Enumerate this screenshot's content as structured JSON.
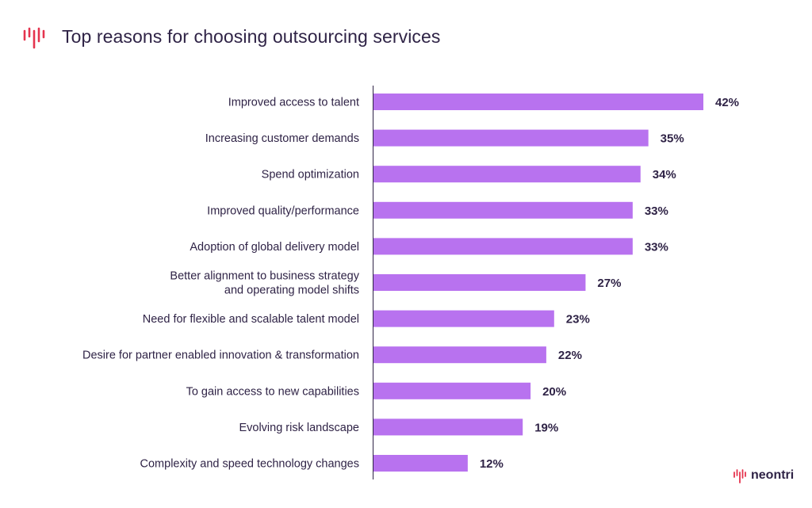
{
  "header": {
    "title": "Top reasons for choosing outsourcing services",
    "brand_icon": "neontri-waveform-icon"
  },
  "logo": {
    "text": "neontri",
    "icon": "neontri-waveform-icon"
  },
  "colors": {
    "bar": "#b872ef",
    "text": "#2f2346",
    "axis": "#2f2346",
    "brand": "#e5344e"
  },
  "chart_data": {
    "type": "bar",
    "orientation": "horizontal",
    "title": "Top reasons for choosing outsourcing services",
    "unit": "%",
    "categories": [
      [
        "Improved access to talent"
      ],
      [
        "Increasing customer demands"
      ],
      [
        "Spend optimization"
      ],
      [
        "Improved quality/performance"
      ],
      [
        "Adoption of global delivery model"
      ],
      [
        "Better alignment to business strategy",
        "and operating model shifts"
      ],
      [
        "Need for flexible and scalable talent model"
      ],
      [
        "Desire for partner enabled innovation & transformation"
      ],
      [
        "To gain access to new capabilities"
      ],
      [
        "Evolving risk landscape"
      ],
      [
        "Complexity and speed technology changes"
      ]
    ],
    "values": [
      42,
      35,
      34,
      33,
      33,
      27,
      23,
      22,
      20,
      19,
      12
    ],
    "value_labels": [
      "42%",
      "35%",
      "34%",
      "33%",
      "33%",
      "27%",
      "23%",
      "22%",
      "20%",
      "19%",
      "12%"
    ],
    "xlim": [
      0,
      42
    ],
    "grid": false,
    "legend": "none"
  }
}
